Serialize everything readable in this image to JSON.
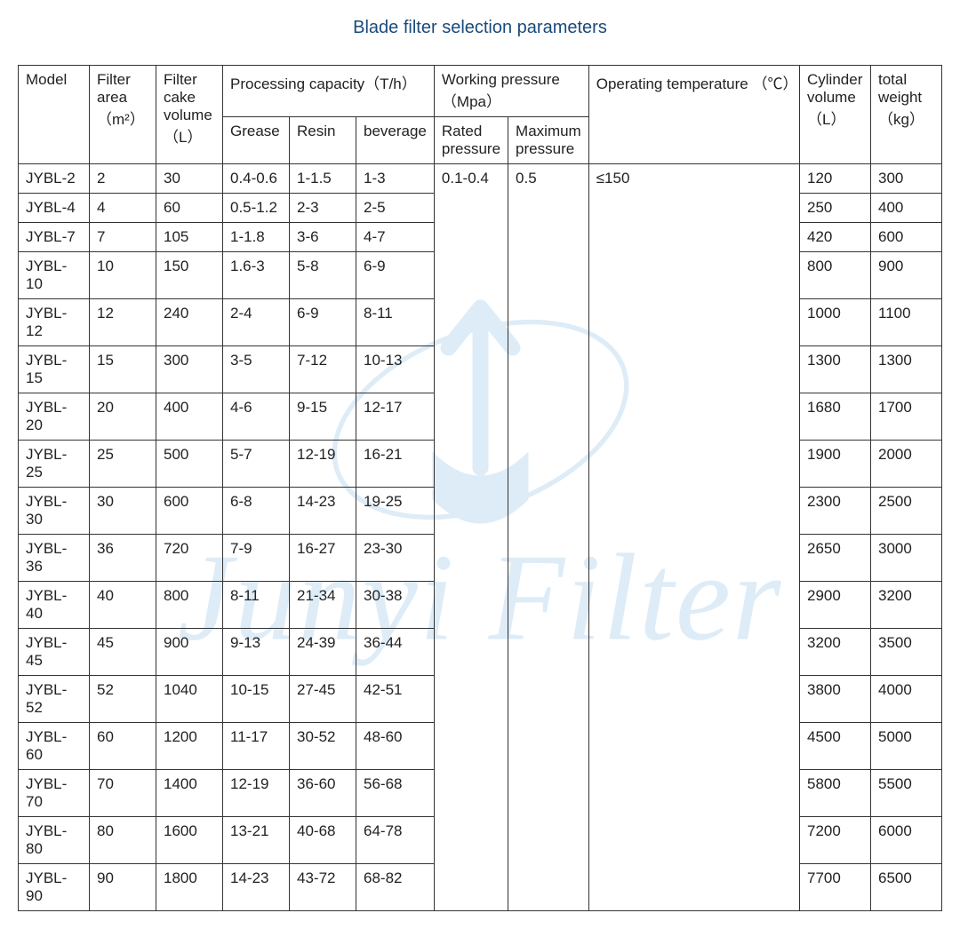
{
  "title": "Blade filter selection parameters",
  "watermark_text": "Junyi Filter",
  "watermark_color": "#7ab8e0",
  "headers": {
    "model": "Model",
    "filter_area": "Filter area （m²）",
    "filter_cake_vol": "Filter cake volume （L）",
    "processing_capacity": "Processing capacity（T/h）",
    "grease": "Grease",
    "resin": "Resin",
    "beverage": "beverage",
    "working_pressure": "Working pressure （Mpa）",
    "rated_pressure": "Rated pressure",
    "max_pressure": "Maximum pressure",
    "operating_temp": "Operating temperature （℃）",
    "cylinder_vol": "Cylinder volume （L）",
    "total_weight": "total weight （kg）"
  },
  "shared": {
    "rated_pressure": "0.1-0.4",
    "max_pressure": "0.5",
    "operating_temp": "≤150"
  },
  "rows": [
    {
      "model": "JYBL-2",
      "area": "2",
      "cake": "30",
      "grease": "0.4-0.6",
      "resin": "1-1.5",
      "bev": "1-3",
      "cyl": "120",
      "wt": "300"
    },
    {
      "model": "JYBL-4",
      "area": "4",
      "cake": "60",
      "grease": "0.5-1.2",
      "resin": "2-3",
      "bev": "2-5",
      "cyl": "250",
      "wt": "400"
    },
    {
      "model": "JYBL-7",
      "area": "7",
      "cake": "105",
      "grease": "1-1.8",
      "resin": "3-6",
      "bev": "4-7",
      "cyl": "420",
      "wt": "600"
    },
    {
      "model": "JYBL-10",
      "area": "10",
      "cake": "150",
      "grease": "1.6-3",
      "resin": "5-8",
      "bev": "6-9",
      "cyl": "800",
      "wt": "900"
    },
    {
      "model": "JYBL-12",
      "area": "12",
      "cake": "240",
      "grease": "2-4",
      "resin": "6-9",
      "bev": "8-11",
      "cyl": "1000",
      "wt": "1100"
    },
    {
      "model": "JYBL-15",
      "area": "15",
      "cake": "300",
      "grease": "3-5",
      "resin": "7-12",
      "bev": "10-13",
      "cyl": "1300",
      "wt": "1300"
    },
    {
      "model": "JYBL-20",
      "area": "20",
      "cake": "400",
      "grease": "4-6",
      "resin": "9-15",
      "bev": "12-17",
      "cyl": "1680",
      "wt": "1700"
    },
    {
      "model": "JYBL-25",
      "area": "25",
      "cake": "500",
      "grease": "5-7",
      "resin": "12-19",
      "bev": "16-21",
      "cyl": "1900",
      "wt": "2000"
    },
    {
      "model": "JYBL-30",
      "area": "30",
      "cake": "600",
      "grease": "6-8",
      "resin": "14-23",
      "bev": "19-25",
      "cyl": "2300",
      "wt": "2500"
    },
    {
      "model": "JYBL-36",
      "area": "36",
      "cake": "720",
      "grease": "7-9",
      "resin": "16-27",
      "bev": "23-30",
      "cyl": "2650",
      "wt": "3000"
    },
    {
      "model": "JYBL-40",
      "area": "40",
      "cake": "800",
      "grease": "8-11",
      "resin": "21-34",
      "bev": "30-38",
      "cyl": "2900",
      "wt": "3200"
    },
    {
      "model": "JYBL-45",
      "area": "45",
      "cake": "900",
      "grease": "9-13",
      "resin": "24-39",
      "bev": "36-44",
      "cyl": "3200",
      "wt": "3500"
    },
    {
      "model": "JYBL-52",
      "area": "52",
      "cake": "1040",
      "grease": "10-15",
      "resin": "27-45",
      "bev": "42-51",
      "cyl": "3800",
      "wt": "4000"
    },
    {
      "model": "JYBL-60",
      "area": "60",
      "cake": "1200",
      "grease": "11-17",
      "resin": "30-52",
      "bev": "48-60",
      "cyl": "4500",
      "wt": "5000"
    },
    {
      "model": "JYBL-70",
      "area": "70",
      "cake": "1400",
      "grease": "12-19",
      "resin": "36-60",
      "bev": "56-68",
      "cyl": "5800",
      "wt": "5500"
    },
    {
      "model": "JYBL-80",
      "area": "80",
      "cake": "1600",
      "grease": "13-21",
      "resin": "40-68",
      "bev": "64-78",
      "cyl": "7200",
      "wt": "6000"
    },
    {
      "model": "JYBL-90",
      "area": "90",
      "cake": "1800",
      "grease": "14-23",
      "resin": "43-72",
      "bev": "68-82",
      "cyl": "7700",
      "wt": "6500"
    }
  ],
  "table_style": {
    "border_color": "#333333",
    "font_size": 17,
    "header_font_weight": "normal",
    "text_color": "#222222",
    "background_color": "#ffffff"
  }
}
